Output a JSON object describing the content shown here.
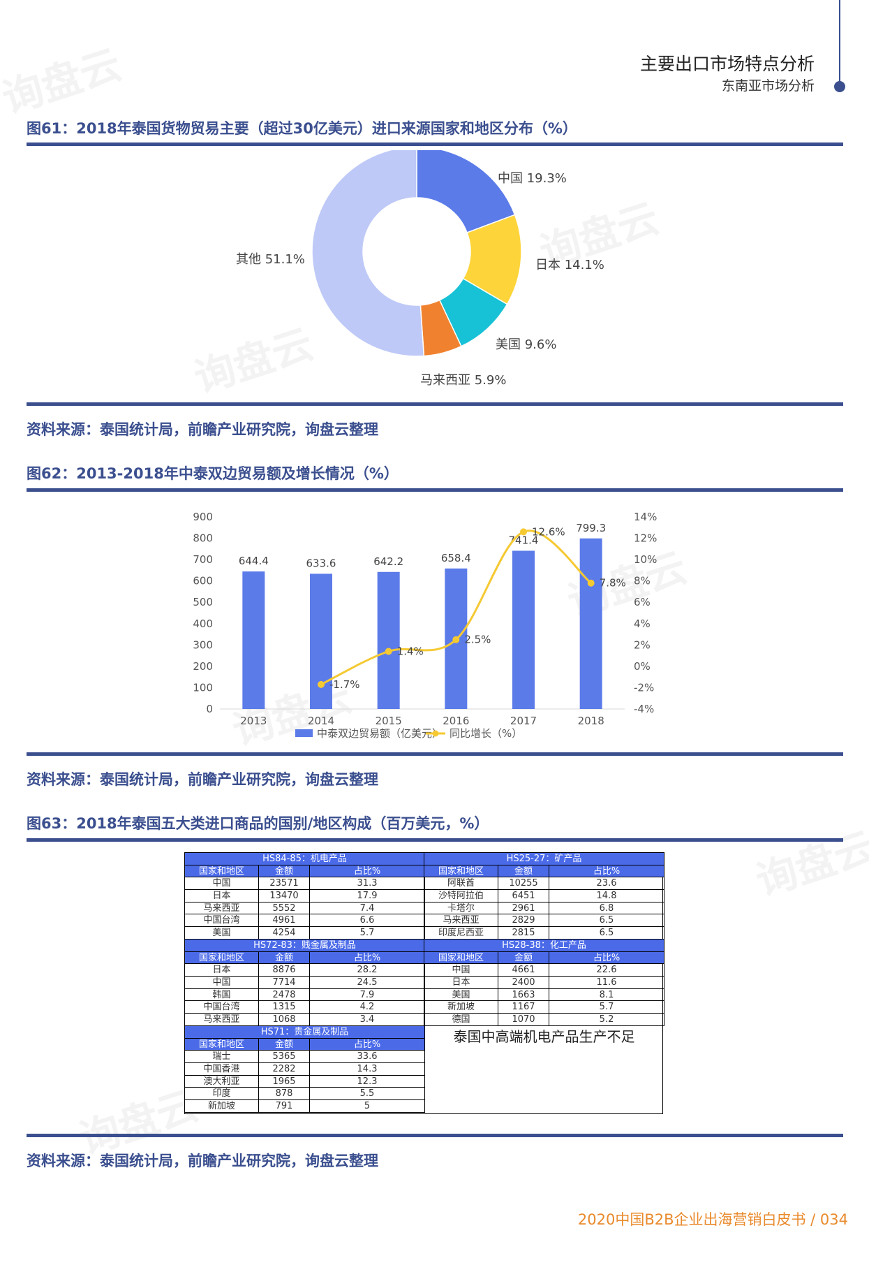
{
  "header": {
    "section_title": "主要出口市场特点分析",
    "section_sub": "东南亚市场分析"
  },
  "watermark": "询盘云",
  "fig61": {
    "title": "图61：2018年泰国货物贸易主要（超过30亿美元）进口来源国家和地区分布（%）",
    "source": "资料来源：泰国统计局，前瞻产业研究院，询盘云整理",
    "chart_data": {
      "type": "pie",
      "style": "donut",
      "slices": [
        {
          "label": "中国 19.3%",
          "name": "中国",
          "value": 19.3,
          "color": "#5b7be9"
        },
        {
          "label": "日本 14.1%",
          "name": "日本",
          "value": 14.1,
          "color": "#fdd43a"
        },
        {
          "label": "美国 9.6%",
          "name": "美国",
          "value": 9.6,
          "color": "#17c1d6"
        },
        {
          "label": "马来西亚 5.9%",
          "name": "马来西亚",
          "value": 5.9,
          "color": "#f0822f"
        },
        {
          "label": "其他 51.1%",
          "name": "其他",
          "value": 51.1,
          "color": "#bec9f7"
        }
      ]
    }
  },
  "fig62": {
    "title": "图62：2013-2018年中泰双边贸易额及增长情况（%）",
    "source": "资料来源：泰国统计局，前瞻产业研究院，询盘云整理",
    "chart_data": {
      "type": "bar",
      "categories": [
        "2013",
        "2014",
        "2015",
        "2016",
        "2017",
        "2018"
      ],
      "series": [
        {
          "name": "中泰双边贸易额（亿美元）",
          "type": "bar",
          "color": "#5b7be9",
          "values": [
            644.4,
            633.6,
            642.2,
            658.4,
            741.4,
            799.3
          ],
          "labels": [
            "644.4",
            "633.6",
            "642.2",
            "658.4",
            "741.4",
            "799.3"
          ]
        },
        {
          "name": "同比增长（%）",
          "type": "line",
          "color": "#f5c932",
          "values": [
            null,
            -1.7,
            1.4,
            2.5,
            12.6,
            7.8
          ],
          "labels": [
            "",
            "-1.7%",
            "1.4%",
            "2.5%",
            "12.6%",
            "7.8%"
          ]
        }
      ],
      "y_left": {
        "min": 0,
        "max": 900,
        "ticks": [
          "0",
          "100",
          "200",
          "300",
          "400",
          "500",
          "600",
          "700",
          "800",
          "900"
        ]
      },
      "y_right": {
        "min": -4,
        "max": 14,
        "ticks": [
          "-4%",
          "-2%",
          "0%",
          "2%",
          "4%",
          "6%",
          "8%",
          "10%",
          "12%",
          "14%"
        ]
      },
      "legend": "bottom"
    }
  },
  "fig63": {
    "title": "图63：2018年泰国五大类进口商品的国别/地区构成（百万美元，%）",
    "source": "资料来源：泰国统计局，前瞻产业研究院，询盘云整理",
    "headers": [
      "国家和地区",
      "金额",
      "占比%"
    ],
    "tables": [
      {
        "category": "HS84-85：机电产品",
        "rows": [
          [
            "中国",
            "23571",
            "31.3"
          ],
          [
            "日本",
            "13470",
            "17.9"
          ],
          [
            "马来西亚",
            "5552",
            "7.4"
          ],
          [
            "中国台湾",
            "4961",
            "6.6"
          ],
          [
            "美国",
            "4254",
            "5.7"
          ]
        ]
      },
      {
        "category": "HS25-27：矿产品",
        "rows": [
          [
            "阿联酋",
            "10255",
            "23.6"
          ],
          [
            "沙特阿拉伯",
            "6451",
            "14.8"
          ],
          [
            "卡塔尔",
            "2961",
            "6.8"
          ],
          [
            "马来西亚",
            "2829",
            "6.5"
          ],
          [
            "印度尼西亚",
            "2815",
            "6.5"
          ]
        ]
      },
      {
        "category": "HS72-83：贱金属及制品",
        "rows": [
          [
            "日本",
            "8876",
            "28.2"
          ],
          [
            "中国",
            "7714",
            "24.5"
          ],
          [
            "韩国",
            "2478",
            "7.9"
          ],
          [
            "中国台湾",
            "1315",
            "4.2"
          ],
          [
            "马来西亚",
            "1068",
            "3.4"
          ]
        ]
      },
      {
        "category": "HS28-38：化工产品",
        "rows": [
          [
            "中国",
            "4661",
            "22.6"
          ],
          [
            "日本",
            "2400",
            "11.6"
          ],
          [
            "美国",
            "1663",
            "8.1"
          ],
          [
            "新加坡",
            "1167",
            "5.7"
          ],
          [
            "德国",
            "1070",
            "5.2"
          ]
        ]
      },
      {
        "category": "HS71：贵金属及制品",
        "rows": [
          [
            "瑞士",
            "5365",
            "33.6"
          ],
          [
            "中国香港",
            "2282",
            "14.3"
          ],
          [
            "澳大利亚",
            "1965",
            "12.3"
          ],
          [
            "印度",
            "878",
            "5.5"
          ],
          [
            "新加坡",
            "791",
            "5"
          ]
        ]
      }
    ],
    "note": "泰国中高端机电产品生产不足"
  },
  "footer": {
    "text": "2020中国B2B企业出海营销白皮书 / 034"
  }
}
